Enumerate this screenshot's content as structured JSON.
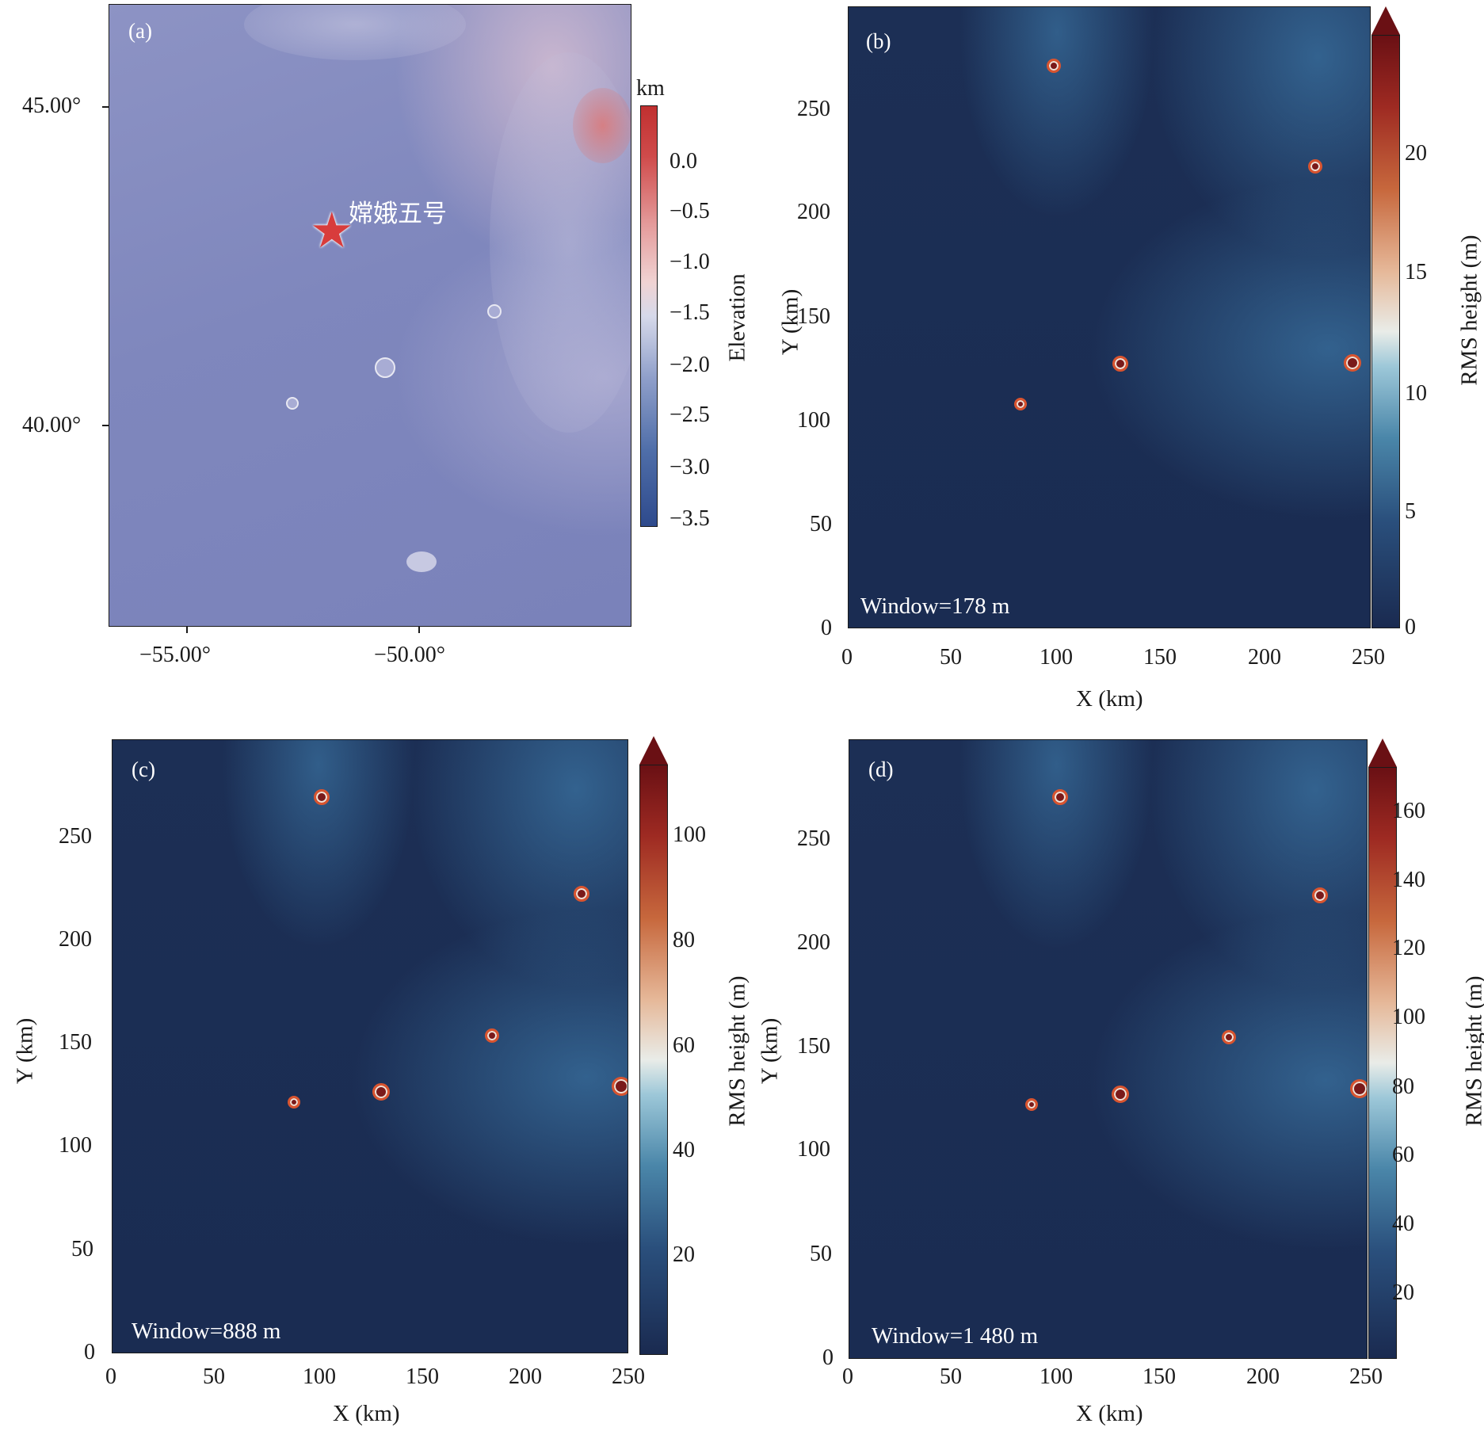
{
  "panel_a": {
    "letter": "(a)",
    "lat_ticks": [
      "45.00°",
      "40.00°"
    ],
    "lon_ticks": [
      "−55.00°",
      "−50.00°"
    ],
    "landing_label": "嫦娥五号",
    "colorbar": {
      "unit": "km",
      "title": "Elevation",
      "ticks": [
        "0.0",
        "−0.5",
        "−1.0",
        "−1.5",
        "−2.0",
        "−2.5",
        "−3.0",
        "−3.5"
      ]
    }
  },
  "panel_b": {
    "letter": "(b)",
    "window": "Window=178 m",
    "x_ticks": [
      "0",
      "50",
      "100",
      "150",
      "200",
      "250"
    ],
    "y_ticks": [
      "0",
      "50",
      "100",
      "150",
      "200",
      "250"
    ],
    "xlabel": "X (km)",
    "ylabel": "Y (km)",
    "colorbar": {
      "title": "RMS height (m)",
      "ticks": [
        "0",
        "5",
        "10",
        "15",
        "20"
      ]
    }
  },
  "panel_c": {
    "letter": "(c)",
    "window": "Window=888 m",
    "x_ticks": [
      "0",
      "50",
      "100",
      "150",
      "200",
      "250"
    ],
    "y_ticks": [
      "0",
      "50",
      "100",
      "150",
      "200",
      "250"
    ],
    "xlabel": "X (km)",
    "ylabel": "Y (km)",
    "colorbar": {
      "title": "RMS height (m)",
      "ticks": [
        "20",
        "40",
        "60",
        "80",
        "100"
      ]
    }
  },
  "panel_d": {
    "letter": "(d)",
    "window": "Window=1 480 m",
    "x_ticks": [
      "0",
      "50",
      "100",
      "150",
      "200",
      "250"
    ],
    "y_ticks": [
      "0",
      "50",
      "100",
      "150",
      "200",
      "250"
    ],
    "xlabel": "X (km)",
    "ylabel": "Y (km)",
    "colorbar": {
      "title": "RMS height (m)",
      "ticks": [
        "20",
        "40",
        "60",
        "80",
        "100",
        "120",
        "140",
        "160"
      ]
    }
  },
  "colors": {
    "elevation_low": "#2e4a8c",
    "elevation_high": "#c03030",
    "rms_low": "#1a2a50",
    "rms_high": "#6a1014",
    "landing_star": "#d83c3c"
  }
}
